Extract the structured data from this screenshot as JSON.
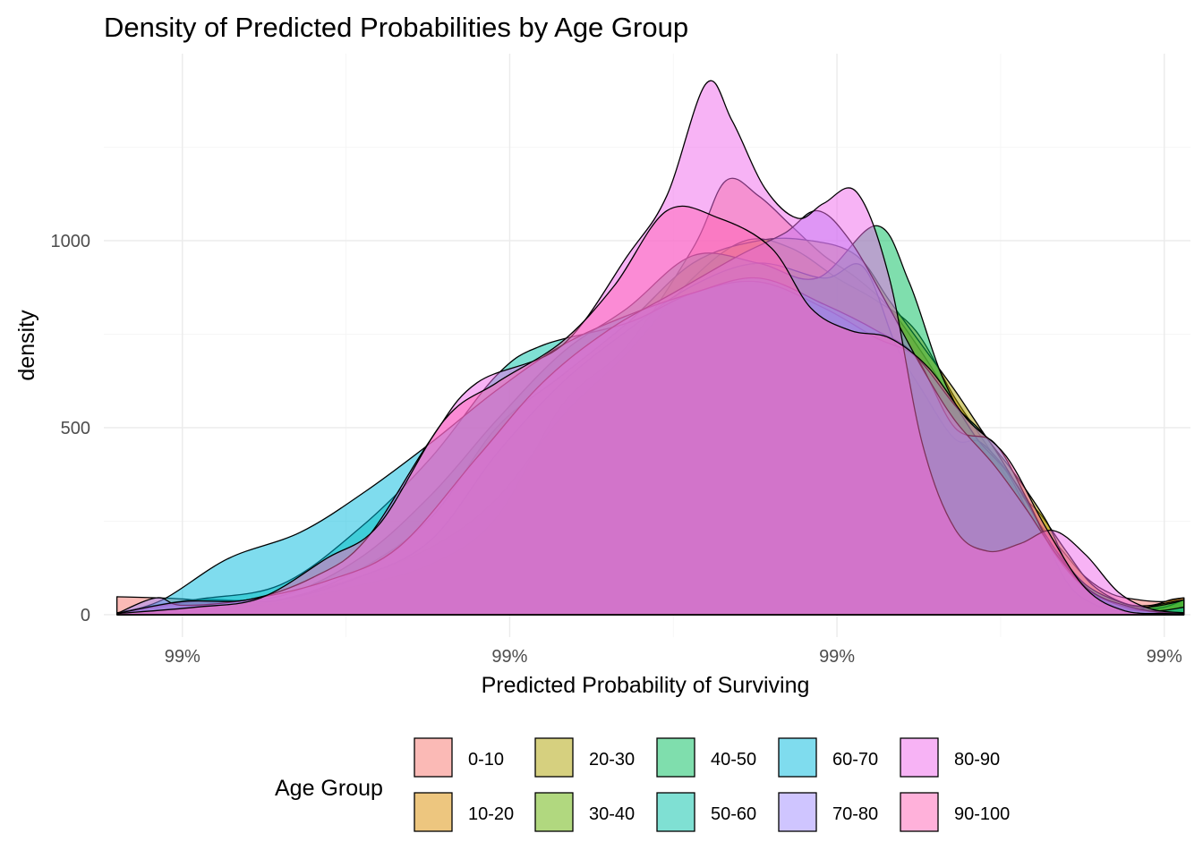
{
  "chart_data": {
    "type": "area",
    "title": "Density of Predicted Probabilities by Age Group",
    "xlabel": "Predicted Probability of Surviving",
    "ylabel": "density",
    "x_tick_labels": [
      "99%",
      "99%",
      "99%",
      "99%"
    ],
    "x_ticks": [
      0.991,
      0.9915,
      0.992,
      0.9925
    ],
    "xlim": [
      0.99088,
      0.99254
    ],
    "ylim": [
      -60,
      1500
    ],
    "y_ticks": [
      0,
      500,
      1000
    ],
    "y_tick_labels": [
      "0",
      "500",
      "1000"
    ],
    "grid": true,
    "legend": {
      "title": "Age Group",
      "position": "bottom"
    },
    "fill_opacity": 0.5,
    "series": [
      {
        "name": "0-10",
        "color": "#F8766D",
        "points": [
          [
            0.9909,
            48
          ],
          [
            0.991,
            42
          ],
          [
            0.99112,
            25
          ],
          [
            0.99125,
            70
          ],
          [
            0.99138,
            135
          ],
          [
            0.99148,
            260
          ],
          [
            0.99158,
            560
          ],
          [
            0.99168,
            720
          ],
          [
            0.99178,
            980
          ],
          [
            0.99183,
            1160
          ],
          [
            0.99188,
            1120
          ],
          [
            0.99193,
            1040
          ],
          [
            0.99198,
            960
          ],
          [
            0.99203,
            900
          ],
          [
            0.99208,
            820
          ],
          [
            0.99213,
            700
          ],
          [
            0.99218,
            560
          ],
          [
            0.99222,
            450
          ],
          [
            0.99226,
            330
          ],
          [
            0.9923,
            260
          ],
          [
            0.99234,
            180
          ],
          [
            0.99238,
            100
          ],
          [
            0.99242,
            55
          ],
          [
            0.99246,
            40
          ],
          [
            0.9925,
            35
          ],
          [
            0.99253,
            45
          ]
        ]
      },
      {
        "name": "10-20",
        "color": "#DB8E00",
        "points": [
          [
            0.9909,
            5
          ],
          [
            0.991,
            20
          ],
          [
            0.99112,
            30
          ],
          [
            0.99125,
            90
          ],
          [
            0.99138,
            180
          ],
          [
            0.99148,
            310
          ],
          [
            0.99158,
            530
          ],
          [
            0.99168,
            700
          ],
          [
            0.99178,
            900
          ],
          [
            0.99186,
            1000
          ],
          [
            0.99193,
            980
          ],
          [
            0.992,
            900
          ],
          [
            0.99206,
            840
          ],
          [
            0.99212,
            760
          ],
          [
            0.99218,
            580
          ],
          [
            0.99223,
            450
          ],
          [
            0.99227,
            340
          ],
          [
            0.99231,
            270
          ],
          [
            0.99235,
            170
          ],
          [
            0.99239,
            80
          ],
          [
            0.99244,
            30
          ],
          [
            0.99248,
            25
          ],
          [
            0.99251,
            40
          ],
          [
            0.99253,
            45
          ]
        ]
      },
      {
        "name": "20-30",
        "color": "#AEA200",
        "points": [
          [
            0.9909,
            5
          ],
          [
            0.99102,
            40
          ],
          [
            0.99115,
            40
          ],
          [
            0.99127,
            120
          ],
          [
            0.99138,
            260
          ],
          [
            0.99148,
            500
          ],
          [
            0.99158,
            640
          ],
          [
            0.99168,
            780
          ],
          [
            0.99178,
            940
          ],
          [
            0.99188,
            1000
          ],
          [
            0.99196,
            1000
          ],
          [
            0.99203,
            960
          ],
          [
            0.99208,
            840
          ],
          [
            0.99213,
            720
          ],
          [
            0.99218,
            600
          ],
          [
            0.99223,
            470
          ],
          [
            0.99227,
            380
          ],
          [
            0.99232,
            250
          ],
          [
            0.99236,
            110
          ],
          [
            0.99241,
            40
          ],
          [
            0.99246,
            15
          ],
          [
            0.9925,
            20
          ],
          [
            0.99253,
            40
          ]
        ]
      },
      {
        "name": "30-40",
        "color": "#64B200",
        "points": [
          [
            0.9909,
            3
          ],
          [
            0.99102,
            30
          ],
          [
            0.99115,
            40
          ],
          [
            0.99127,
            100
          ],
          [
            0.99138,
            200
          ],
          [
            0.99148,
            430
          ],
          [
            0.99158,
            620
          ],
          [
            0.99168,
            760
          ],
          [
            0.99178,
            880
          ],
          [
            0.99188,
            940
          ],
          [
            0.99198,
            900
          ],
          [
            0.99204,
            930
          ],
          [
            0.99209,
            720
          ],
          [
            0.99213,
            600
          ],
          [
            0.99218,
            470
          ],
          [
            0.99222,
            460
          ],
          [
            0.99227,
            360
          ],
          [
            0.99231,
            240
          ],
          [
            0.99235,
            90
          ],
          [
            0.99239,
            30
          ],
          [
            0.99244,
            10
          ],
          [
            0.9925,
            30
          ],
          [
            0.99253,
            40
          ]
        ]
      },
      {
        "name": "40-50",
        "color": "#00BD5C",
        "points": [
          [
            0.9909,
            3
          ],
          [
            0.99102,
            35
          ],
          [
            0.99115,
            50
          ],
          [
            0.99127,
            150
          ],
          [
            0.99138,
            320
          ],
          [
            0.99148,
            520
          ],
          [
            0.99158,
            700
          ],
          [
            0.99168,
            820
          ],
          [
            0.99178,
            960
          ],
          [
            0.99188,
            940
          ],
          [
            0.99197,
            900
          ],
          [
            0.99206,
            1040
          ],
          [
            0.99211,
            890
          ],
          [
            0.99216,
            640
          ],
          [
            0.99221,
            480
          ],
          [
            0.99226,
            380
          ],
          [
            0.9923,
            250
          ],
          [
            0.99234,
            160
          ],
          [
            0.99238,
            80
          ],
          [
            0.99243,
            35
          ],
          [
            0.99247,
            20
          ],
          [
            0.99251,
            30
          ],
          [
            0.99253,
            40
          ]
        ]
      },
      {
        "name": "50-60",
        "color": "#00C1A7",
        "points": [
          [
            0.9909,
            3
          ],
          [
            0.99102,
            40
          ],
          [
            0.99115,
            80
          ],
          [
            0.99127,
            230
          ],
          [
            0.99138,
            420
          ],
          [
            0.99148,
            640
          ],
          [
            0.99155,
            720
          ],
          [
            0.99168,
            780
          ],
          [
            0.99178,
            860
          ],
          [
            0.99188,
            890
          ],
          [
            0.99198,
            820
          ],
          [
            0.99206,
            740
          ],
          [
            0.99212,
            690
          ],
          [
            0.99218,
            560
          ],
          [
            0.99223,
            470
          ],
          [
            0.99228,
            330
          ],
          [
            0.99232,
            210
          ],
          [
            0.99236,
            110
          ],
          [
            0.9924,
            45
          ],
          [
            0.99244,
            15
          ],
          [
            0.99249,
            10
          ],
          [
            0.99253,
            20
          ]
        ]
      },
      {
        "name": "60-70",
        "color": "#00BADE",
        "points": [
          [
            0.9909,
            3
          ],
          [
            0.99097,
            40
          ],
          [
            0.99107,
            150
          ],
          [
            0.99118,
            220
          ],
          [
            0.99128,
            330
          ],
          [
            0.99138,
            460
          ],
          [
            0.99148,
            600
          ],
          [
            0.99158,
            720
          ],
          [
            0.99168,
            800
          ],
          [
            0.99178,
            860
          ],
          [
            0.99188,
            900
          ],
          [
            0.99198,
            830
          ],
          [
            0.99206,
            760
          ],
          [
            0.99212,
            690
          ],
          [
            0.99218,
            500
          ],
          [
            0.99224,
            460
          ],
          [
            0.99229,
            310
          ],
          [
            0.99233,
            170
          ],
          [
            0.99238,
            70
          ],
          [
            0.99244,
            20
          ],
          [
            0.9925,
            5
          ],
          [
            0.99253,
            5
          ]
        ]
      },
      {
        "name": "70-80",
        "color": "#9F8CFF",
        "points": [
          [
            0.9909,
            3
          ],
          [
            0.99096,
            45
          ],
          [
            0.991,
            25
          ],
          [
            0.9911,
            40
          ],
          [
            0.99122,
            90
          ],
          [
            0.99133,
            180
          ],
          [
            0.99145,
            420
          ],
          [
            0.99155,
            620
          ],
          [
            0.99165,
            760
          ],
          [
            0.99175,
            860
          ],
          [
            0.99185,
            960
          ],
          [
            0.99192,
            1020
          ],
          [
            0.99197,
            1080
          ],
          [
            0.99202,
            1000
          ],
          [
            0.99208,
            820
          ],
          [
            0.99213,
            660
          ],
          [
            0.99218,
            520
          ],
          [
            0.99224,
            400
          ],
          [
            0.99229,
            280
          ],
          [
            0.99234,
            150
          ],
          [
            0.99239,
            60
          ],
          [
            0.99245,
            20
          ],
          [
            0.9925,
            5
          ],
          [
            0.99253,
            5
          ]
        ]
      },
      {
        "name": "80-90",
        "color": "#EF67EB",
        "points": [
          [
            0.9909,
            3
          ],
          [
            0.991,
            35
          ],
          [
            0.9911,
            40
          ],
          [
            0.9912,
            100
          ],
          [
            0.99128,
            200
          ],
          [
            0.99138,
            470
          ],
          [
            0.99145,
            620
          ],
          [
            0.99158,
            720
          ],
          [
            0.99168,
            960
          ],
          [
            0.99174,
            1120
          ],
          [
            0.9918,
            1420
          ],
          [
            0.99184,
            1320
          ],
          [
            0.99189,
            1140
          ],
          [
            0.99194,
            1060
          ],
          [
            0.99198,
            1100
          ],
          [
            0.99203,
            1130
          ],
          [
            0.99208,
            900
          ],
          [
            0.99213,
            460
          ],
          [
            0.99218,
            230
          ],
          [
            0.99223,
            170
          ],
          [
            0.99228,
            190
          ],
          [
            0.99233,
            225
          ],
          [
            0.99238,
            160
          ],
          [
            0.99243,
            60
          ],
          [
            0.99248,
            15
          ],
          [
            0.99253,
            5
          ]
        ]
      },
      {
        "name": "90-100",
        "color": "#FF63B6",
        "points": [
          [
            0.9909,
            3
          ],
          [
            0.99102,
            20
          ],
          [
            0.99112,
            45
          ],
          [
            0.99122,
            150
          ],
          [
            0.9913,
            240
          ],
          [
            0.9914,
            520
          ],
          [
            0.99148,
            620
          ],
          [
            0.99158,
            730
          ],
          [
            0.99166,
            880
          ],
          [
            0.99174,
            1080
          ],
          [
            0.99182,
            1060
          ],
          [
            0.9919,
            980
          ],
          [
            0.99196,
            820
          ],
          [
            0.99202,
            760
          ],
          [
            0.99208,
            740
          ],
          [
            0.99214,
            660
          ],
          [
            0.9922,
            520
          ],
          [
            0.99226,
            420
          ],
          [
            0.99232,
            230
          ],
          [
            0.99238,
            70
          ],
          [
            0.99244,
            10
          ],
          [
            0.9925,
            3
          ],
          [
            0.99253,
            3
          ]
        ]
      }
    ]
  }
}
